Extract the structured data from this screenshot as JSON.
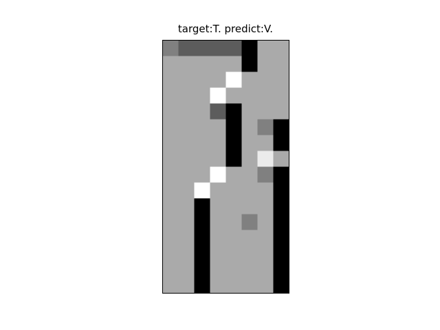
{
  "chart_data": {
    "type": "heatmap",
    "title": "target:T. predict:V.",
    "xlabel": "",
    "ylabel": "",
    "axes_visible": false,
    "rows": 16,
    "cols": 8,
    "values": [
      [
        0.502,
        0.361,
        0.361,
        0.361,
        0.361,
        0.0,
        0.667,
        0.667
      ],
      [
        0.667,
        0.667,
        0.667,
        0.667,
        0.667,
        0.0,
        0.667,
        0.667
      ],
      [
        0.667,
        0.667,
        0.667,
        0.667,
        1.0,
        0.667,
        0.667,
        0.667
      ],
      [
        0.667,
        0.667,
        0.667,
        1.0,
        0.667,
        0.667,
        0.667,
        0.667
      ],
      [
        0.667,
        0.667,
        0.667,
        0.361,
        0.0,
        0.667,
        0.667,
        0.667
      ],
      [
        0.667,
        0.667,
        0.667,
        0.667,
        0.0,
        0.667,
        0.502,
        0.0
      ],
      [
        0.667,
        0.667,
        0.667,
        0.667,
        0.0,
        0.667,
        0.667,
        0.0
      ],
      [
        0.667,
        0.667,
        0.667,
        0.667,
        0.0,
        0.667,
        0.922,
        0.667
      ],
      [
        0.667,
        0.667,
        0.667,
        1.0,
        0.667,
        0.667,
        0.502,
        0.0
      ],
      [
        0.667,
        0.667,
        1.0,
        0.667,
        0.667,
        0.667,
        0.667,
        0.0
      ],
      [
        0.667,
        0.667,
        0.0,
        0.667,
        0.667,
        0.667,
        0.667,
        0.0
      ],
      [
        0.667,
        0.667,
        0.0,
        0.667,
        0.667,
        0.502,
        0.667,
        0.0
      ],
      [
        0.667,
        0.667,
        0.0,
        0.667,
        0.667,
        0.667,
        0.667,
        0.0
      ],
      [
        0.667,
        0.667,
        0.0,
        0.667,
        0.667,
        0.667,
        0.667,
        0.0
      ],
      [
        0.667,
        0.667,
        0.0,
        0.667,
        0.667,
        0.667,
        0.667,
        0.0
      ],
      [
        0.667,
        0.667,
        0.0,
        0.667,
        0.667,
        0.667,
        0.667,
        0.0
      ]
    ],
    "colormap": "gray"
  }
}
